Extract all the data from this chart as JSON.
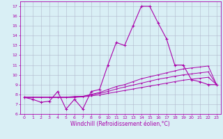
{
  "xlabel": "Windchill (Refroidissement éolien,°C)",
  "x": [
    0,
    1,
    2,
    3,
    4,
    5,
    6,
    7,
    8,
    9,
    10,
    11,
    12,
    13,
    14,
    15,
    16,
    17,
    18,
    19,
    20,
    21,
    22,
    23
  ],
  "line1": [
    7.7,
    7.5,
    7.2,
    7.3,
    8.3,
    6.5,
    7.5,
    6.5,
    8.3,
    8.5,
    11.0,
    13.3,
    13.0,
    15.0,
    17.0,
    17.0,
    15.3,
    13.7,
    11.0,
    11.0,
    9.5,
    9.3,
    9.0,
    9.0
  ],
  "line2": [
    7.7,
    7.7,
    7.7,
    7.7,
    7.7,
    7.7,
    7.8,
    7.8,
    8.0,
    8.2,
    8.5,
    8.8,
    9.0,
    9.3,
    9.6,
    9.8,
    10.0,
    10.2,
    10.4,
    10.6,
    10.7,
    10.8,
    10.9,
    9.0
  ],
  "line3": [
    7.7,
    7.7,
    7.7,
    7.7,
    7.7,
    7.7,
    7.7,
    7.8,
    7.95,
    8.1,
    8.3,
    8.55,
    8.75,
    8.95,
    9.15,
    9.35,
    9.55,
    9.7,
    9.85,
    10.0,
    10.1,
    10.2,
    10.3,
    9.0
  ],
  "line4": [
    7.7,
    7.7,
    7.7,
    7.7,
    7.7,
    7.7,
    7.7,
    7.75,
    7.85,
    7.95,
    8.1,
    8.25,
    8.4,
    8.55,
    8.7,
    8.85,
    9.0,
    9.15,
    9.3,
    9.45,
    9.55,
    9.65,
    9.75,
    9.0
  ],
  "line_color": "#aa00aa",
  "bg_color": "#d9eff5",
  "grid_color": "#b0b8cc",
  "ylim": [
    6,
    17.5
  ],
  "yticks": [
    6,
    7,
    8,
    9,
    10,
    11,
    12,
    13,
    14,
    15,
    16,
    17
  ],
  "xlim": [
    -0.5,
    23.5
  ],
  "xticks": [
    0,
    1,
    2,
    3,
    4,
    5,
    6,
    7,
    8,
    9,
    10,
    11,
    12,
    13,
    14,
    15,
    16,
    17,
    18,
    19,
    20,
    21,
    22,
    23
  ],
  "tick_fontsize": 4.5,
  "label_fontsize": 5.5
}
